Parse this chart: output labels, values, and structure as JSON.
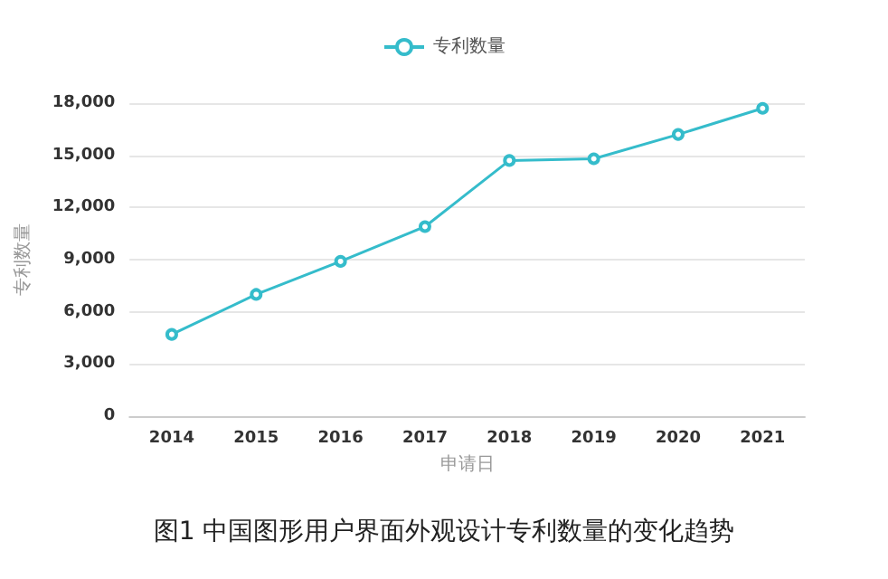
{
  "chart_data": {
    "type": "line",
    "title": "图1 中国图形用户界面外观设计专利数量的变化趋势",
    "xlabel": "申请日",
    "ylabel": "专利数量",
    "categories": [
      "2014",
      "2015",
      "2016",
      "2017",
      "2018",
      "2019",
      "2020",
      "2021"
    ],
    "series": [
      {
        "name": "专利数量",
        "color": "#35bccb",
        "values": [
          4700,
          7000,
          8900,
          10900,
          14700,
          14800,
          16200,
          17700
        ]
      }
    ],
    "ylim": [
      0,
      18000
    ],
    "yticks": [
      0,
      {
        "value": 3000,
        "label": "3,000"
      },
      {
        "value": 6000,
        "label": "6,000"
      },
      {
        "value": 9000,
        "label": "9,000"
      },
      {
        "value": 12000,
        "label": "12,000"
      },
      {
        "value": 15000,
        "label": "15,000"
      },
      {
        "value": 18000,
        "label": "18,000"
      }
    ],
    "grid": "y",
    "legend": "top",
    "marker": "circle",
    "line_style": "solid"
  }
}
